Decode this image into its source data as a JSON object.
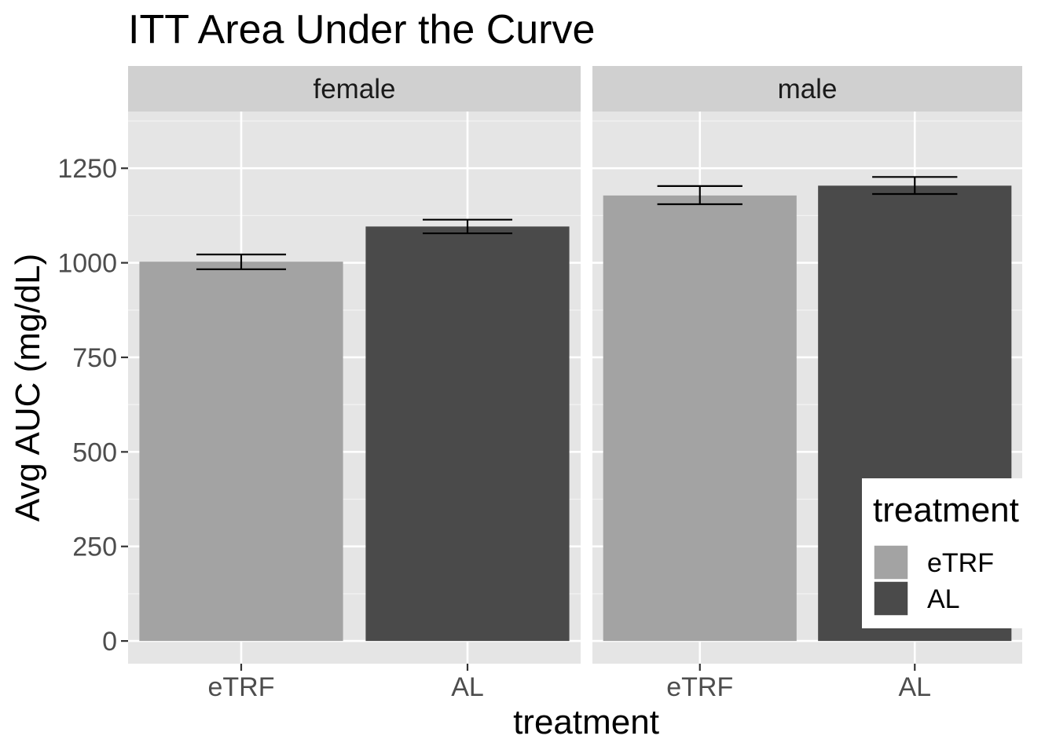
{
  "chart_data": {
    "type": "bar",
    "title": "ITT Area Under the Curve",
    "xlabel": "treatment",
    "ylabel": "Avg AUC (mg/dL)",
    "ylim": [
      -60,
      1400
    ],
    "yticks": [
      0,
      250,
      500,
      750,
      1000,
      1250
    ],
    "facets": [
      "female",
      "male"
    ],
    "categories": [
      "eTRF",
      "AL"
    ],
    "series": [
      {
        "name": "eTRF",
        "color": "#a3a3a3",
        "values": [
          1003,
          1178
        ],
        "error_low": [
          983,
          1155
        ],
        "error_high": [
          1022,
          1203
        ]
      },
      {
        "name": "AL",
        "color": "#4a4a4a",
        "values": [
          1096,
          1204
        ],
        "error_low": [
          1078,
          1182
        ],
        "error_high": [
          1114,
          1227
        ]
      }
    ],
    "legend": {
      "title": "treatment",
      "position": "inside-bottom-right",
      "entries": [
        "eTRF",
        "AL"
      ]
    },
    "panel_background": "#e5e5e5",
    "strip_background": "#d0d0d0",
    "grid": true
  }
}
